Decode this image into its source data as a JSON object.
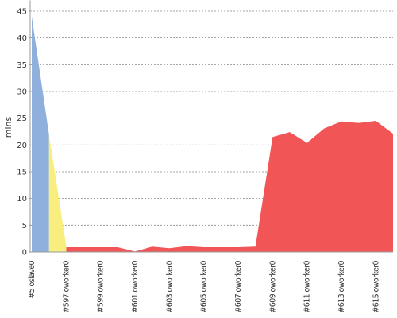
{
  "chart_data": {
    "type": "area",
    "y_label": "mins",
    "categories": [
      "#5 oslave0",
      null,
      "#597 oworker0",
      null,
      "#599 oworker0",
      null,
      "#601 oworker0",
      null,
      "#603 oworker0",
      null,
      "#605 oworker0",
      null,
      "#607 oworker0",
      null,
      "#609 oworker0",
      null,
      "#611 oworker0",
      null,
      "#613 oworker0",
      null,
      "#615 oworker0",
      null
    ],
    "series": [
      {
        "color": "#f25555",
        "values": [
          null,
          null,
          0.9,
          0.9,
          0.9,
          0.9,
          0.1,
          1.0,
          0.7,
          1.1,
          0.9,
          0.9,
          0.9,
          1.0,
          21.5,
          22.4,
          20.4,
          23.1,
          24.4,
          24.1,
          24.5,
          22.1
        ]
      },
      {
        "color": "#f7ee7f",
        "values": [
          null,
          22,
          1.2,
          null,
          null,
          null,
          null,
          null,
          null,
          null,
          null,
          null,
          null,
          null,
          null,
          null,
          null,
          null,
          null,
          null,
          null,
          null
        ]
      },
      {
        "color": "#8fb0dc",
        "values": [
          44,
          22,
          null,
          null,
          null,
          null,
          null,
          null,
          null,
          null,
          null,
          null,
          null,
          null,
          null,
          null,
          null,
          null,
          null,
          null,
          null,
          null
        ]
      }
    ],
    "ylim": [
      0,
      47
    ],
    "yticks": [
      0,
      5,
      10,
      15,
      20,
      25,
      30,
      35,
      40,
      45
    ],
    "grid": true
  }
}
